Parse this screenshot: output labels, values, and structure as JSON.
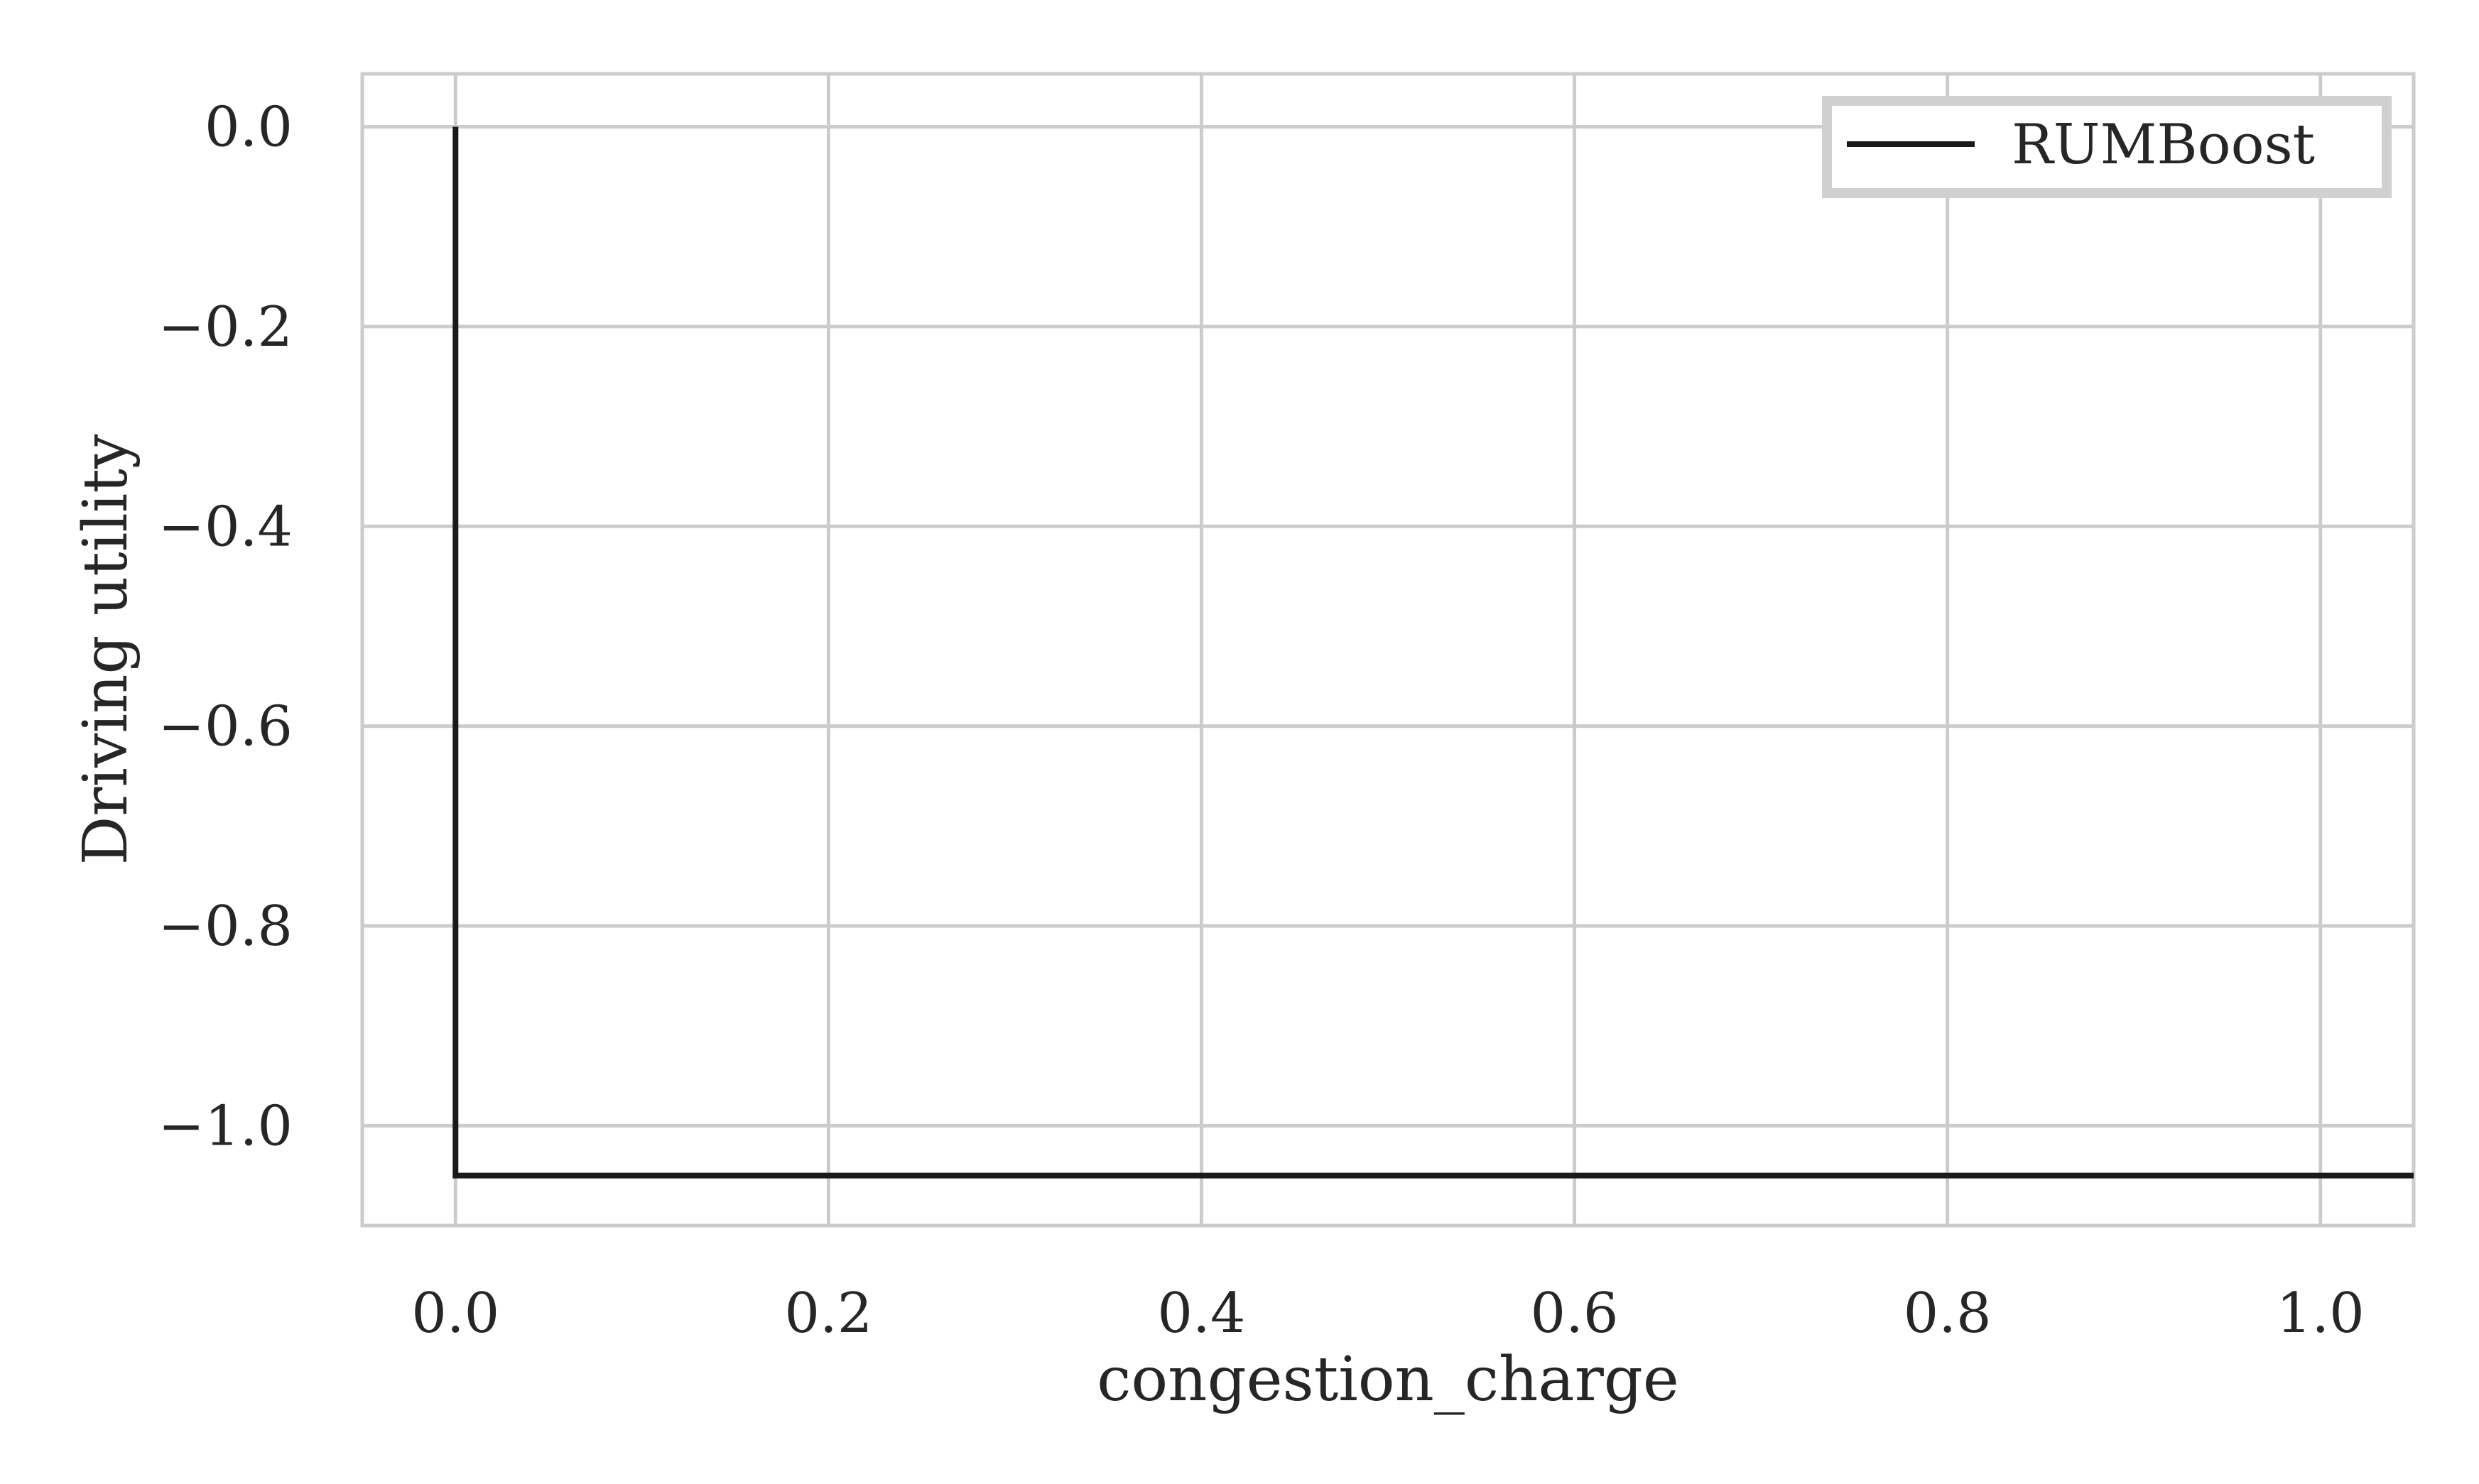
{
  "chart_data": {
    "type": "line",
    "title": "",
    "xlabel": "congestion_charge",
    "ylabel": "Driving utility",
    "xlim": [
      -0.05,
      1.05
    ],
    "ylim": [
      -1.1,
      0.053
    ],
    "xticks": [
      0.0,
      0.2,
      0.4,
      0.6,
      0.8,
      1.0
    ],
    "xtick_labels": [
      "0.0",
      "0.2",
      "0.4",
      "0.6",
      "0.8",
      "1.0"
    ],
    "yticks": [
      0.0,
      -0.2,
      -0.4,
      -0.6,
      -0.8,
      -1.0
    ],
    "ytick_labels": [
      "0.0",
      "−0.2",
      "−0.4",
      "−0.6",
      "−0.8",
      "−1.0"
    ],
    "grid": true,
    "legend_position": "top-right",
    "series": [
      {
        "name": "RUMBoost",
        "color": "#1a1a1a",
        "x": [
          0.0,
          0.0,
          1.05
        ],
        "y": [
          0.0,
          -1.05,
          -1.05
        ]
      }
    ]
  }
}
